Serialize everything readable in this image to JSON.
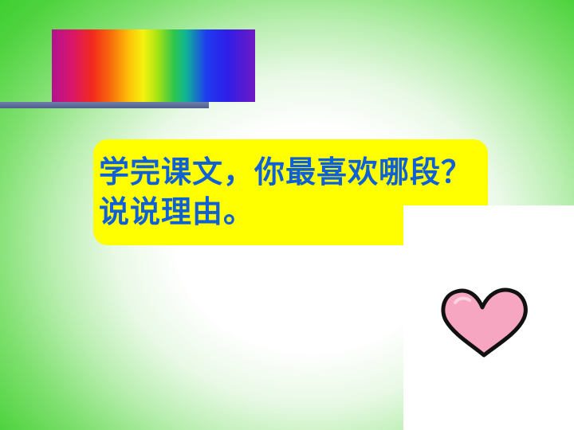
{
  "slide": {
    "question": "学完课文，你最喜欢哪段？说说理由。"
  },
  "decorations": {
    "rainbow_bar": "rainbow-gradient-bar",
    "divider": "slate-blue-line",
    "picture": "pink-heart-icon"
  },
  "colors": {
    "background_edge": "#33cc29",
    "background_center": "#ffffff",
    "question_box": "#ffff00",
    "question_text": "#0f5fd6",
    "divider": "#5a6b97",
    "heart_fill": "#f7a6c2",
    "heart_outline": "#111111"
  }
}
